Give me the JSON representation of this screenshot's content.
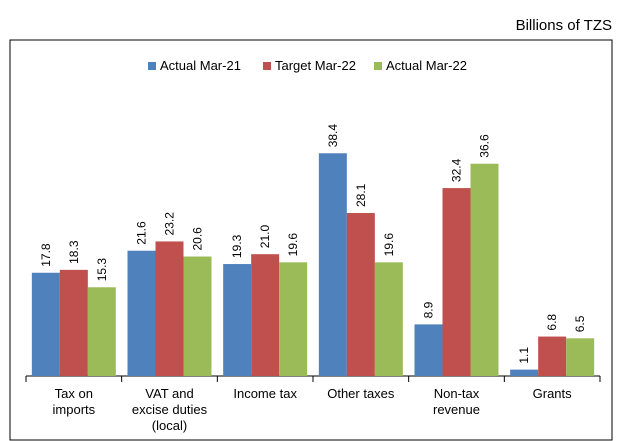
{
  "chart_data": {
    "type": "bar",
    "subtitle": "Billions of TZS",
    "categories": [
      "Tax on imports",
      "VAT and excise duties (local)",
      "Income tax",
      "Other taxes",
      "Non-tax revenue",
      "Grants"
    ],
    "series": [
      {
        "name": "Actual Mar-21",
        "color": "#4f81bd",
        "values": [
          17.8,
          21.6,
          19.3,
          38.4,
          8.9,
          1.1
        ],
        "value_labels": [
          "17.8",
          "21.6",
          "19.3",
          "38.4",
          "8.9",
          "1.1"
        ]
      },
      {
        "name": "Target Mar-22",
        "color": "#c0504d",
        "values": [
          18.3,
          23.2,
          21.0,
          28.1,
          32.4,
          6.8
        ],
        "value_labels": [
          "18.3",
          "23.2",
          "21.0",
          "28.1",
          "32.4",
          "6.8"
        ]
      },
      {
        "name": "Actual Mar-22",
        "color": "#9bbb59",
        "values": [
          15.3,
          20.6,
          19.6,
          19.6,
          36.6,
          6.5
        ],
        "value_labels": [
          "15.3",
          "20.6",
          "19.6",
          "19.6",
          "36.6",
          "6.5"
        ]
      }
    ]
  }
}
